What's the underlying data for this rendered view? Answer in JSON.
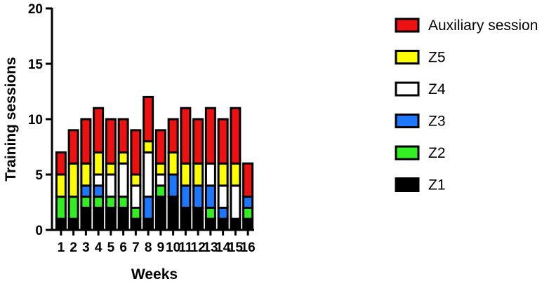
{
  "chart_data": {
    "type": "bar",
    "stacked": true,
    "xlabel": "Weeks",
    "ylabel": "Training sessions",
    "ylim": [
      0,
      20
    ],
    "yticks": [
      0,
      5,
      10,
      15,
      20
    ],
    "categories": [
      "1",
      "2",
      "3",
      "4",
      "5",
      "6",
      "7",
      "8",
      "9",
      "10",
      "11",
      "12",
      "13",
      "14",
      "15",
      "16"
    ],
    "series": [
      {
        "name": "Z1",
        "color": "#000000",
        "values": [
          1,
          1,
          2,
          2,
          2,
          2,
          1,
          1,
          3,
          3,
          2,
          2,
          1,
          1,
          1,
          1
        ]
      },
      {
        "name": "Z2",
        "color": "#33ee22",
        "values": [
          2,
          2,
          1,
          1,
          1,
          1,
          1,
          0,
          1,
          0,
          0,
          0,
          1,
          0,
          0,
          1
        ]
      },
      {
        "name": "Z3",
        "color": "#1e78ff",
        "values": [
          0,
          0,
          1,
          1,
          0,
          0,
          0,
          2,
          0,
          2,
          2,
          2,
          2,
          1,
          0,
          1
        ]
      },
      {
        "name": "Z4",
        "color": "#ffffff",
        "values": [
          0,
          0,
          0,
          1,
          2,
          3,
          2,
          4,
          1,
          0,
          0,
          0,
          2,
          2,
          3,
          0
        ]
      },
      {
        "name": "Z5",
        "color": "#ffff00",
        "values": [
          2,
          3,
          2,
          2,
          1,
          1,
          1,
          1,
          1,
          2,
          2,
          2,
          0,
          2,
          2,
          0
        ]
      },
      {
        "name": "Auxiliary session",
        "color": "#ee1111",
        "values": [
          2,
          3,
          4,
          4,
          4,
          3,
          4,
          4,
          3,
          3,
          5,
          4,
          5,
          4,
          5,
          3
        ]
      }
    ],
    "legend": {
      "position": "right",
      "order": [
        "Auxiliary session",
        "Z5",
        "Z4",
        "Z3",
        "Z2",
        "Z1"
      ]
    },
    "grid": false
  }
}
